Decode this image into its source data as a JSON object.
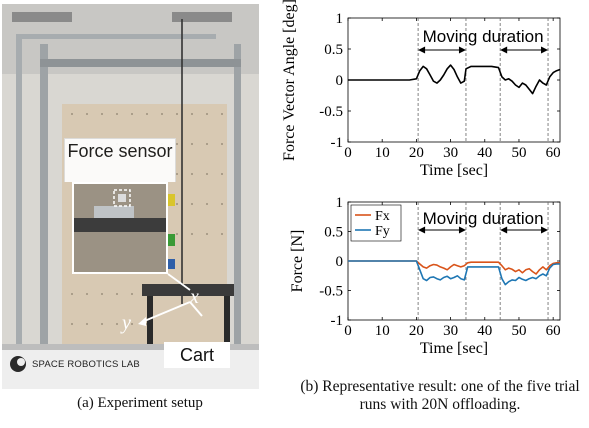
{
  "figure": {
    "photo": {
      "callout_label": "Force sensor",
      "axis_x": "x",
      "axis_y": "y",
      "cart_label": "Cart",
      "lab_logo_text": "SPACE ROBOTICS LAB"
    },
    "caption_a": "(a) Experiment setup",
    "caption_b": "(b) Representative result: one of the five trial runs with 20N offloading."
  },
  "chart_data": [
    {
      "type": "line",
      "title": "",
      "xlabel": "Time [sec]",
      "ylabel": "Force Vector Angle [deg]",
      "xlim": [
        0,
        62
      ],
      "ylim": [
        -1,
        1
      ],
      "xticks": [
        0,
        10,
        20,
        30,
        40,
        50,
        60
      ],
      "yticks": [
        -1,
        -0.5,
        0,
        0.5,
        1
      ],
      "xtick_labels": [
        "0",
        "10",
        "20",
        "30",
        "40",
        "50",
        "60"
      ],
      "ytick_labels": [
        "-1",
        "-0.5",
        "0",
        "0.5",
        "1"
      ],
      "annotation": "Moving duration",
      "moving_duration_intervals": [
        [
          20.5,
          34.5
        ],
        [
          44.5,
          58.5
        ]
      ],
      "series": [
        {
          "color": "#000000",
          "x": [
            0,
            2,
            4,
            6,
            8,
            10,
            12,
            14,
            16,
            18,
            20,
            21,
            22,
            23,
            24,
            25,
            26,
            27,
            28,
            29,
            30,
            31,
            32,
            33,
            34,
            34.5,
            36,
            38,
            40,
            42,
            44,
            45,
            46,
            47,
            48,
            49,
            50,
            51,
            52,
            53,
            54,
            55,
            56,
            57,
            58,
            59,
            60,
            61,
            62
          ],
          "y": [
            0.0,
            0.0,
            0.0,
            0.0,
            0.0,
            0.0,
            0.0,
            0.0,
            0.0,
            0.0,
            0.02,
            0.15,
            0.22,
            0.18,
            0.08,
            -0.02,
            -0.05,
            0.0,
            0.08,
            0.18,
            0.24,
            0.17,
            0.05,
            -0.05,
            -0.02,
            0.18,
            0.22,
            0.22,
            0.22,
            0.22,
            0.2,
            0.05,
            0.0,
            0.02,
            -0.02,
            -0.08,
            -0.12,
            -0.05,
            -0.08,
            -0.15,
            -0.22,
            -0.1,
            0.0,
            -0.05,
            -0.08,
            0.05,
            0.12,
            0.15,
            0.17
          ]
        }
      ]
    },
    {
      "type": "line",
      "title": "",
      "xlabel": "Time [sec]",
      "ylabel": "Force [N]",
      "xlim": [
        0,
        62
      ],
      "ylim": [
        -1,
        1
      ],
      "xticks": [
        0,
        10,
        20,
        30,
        40,
        50,
        60
      ],
      "yticks": [
        -1,
        -0.5,
        0,
        0.5,
        1
      ],
      "xtick_labels": [
        "0",
        "10",
        "20",
        "30",
        "40",
        "50",
        "60"
      ],
      "ytick_labels": [
        "-1",
        "-0.5",
        "0",
        "0.5",
        "1"
      ],
      "annotation": "Moving duration",
      "legend_position": "top-left",
      "moving_duration_intervals": [
        [
          20.5,
          34.5
        ],
        [
          44.5,
          58.5
        ]
      ],
      "series": [
        {
          "name": "Fx",
          "color": "#d9541a",
          "x": [
            0,
            2,
            4,
            6,
            8,
            10,
            12,
            14,
            16,
            18,
            20,
            21,
            22,
            23,
            24,
            25,
            26,
            27,
            28,
            29,
            30,
            31,
            32,
            33,
            34,
            35,
            36,
            38,
            40,
            42,
            44,
            45,
            46,
            47,
            48,
            49,
            50,
            51,
            52,
            53,
            54,
            55,
            56,
            57,
            58,
            59,
            60,
            61,
            62
          ],
          "y": [
            0.0,
            0.0,
            0.0,
            0.0,
            0.0,
            0.0,
            0.0,
            0.0,
            0.0,
            0.0,
            0.0,
            -0.05,
            -0.1,
            -0.12,
            -0.08,
            -0.06,
            -0.07,
            -0.1,
            -0.12,
            -0.15,
            -0.1,
            -0.06,
            -0.08,
            -0.1,
            -0.08,
            -0.03,
            -0.02,
            -0.02,
            -0.02,
            -0.02,
            -0.02,
            -0.08,
            -0.15,
            -0.12,
            -0.14,
            -0.18,
            -0.15,
            -0.2,
            -0.15,
            -0.13,
            -0.18,
            -0.22,
            -0.15,
            -0.1,
            -0.15,
            -0.08,
            -0.04,
            -0.03,
            -0.03
          ]
        },
        {
          "name": "Fy",
          "color": "#1f77b4",
          "x": [
            0,
            2,
            4,
            6,
            8,
            10,
            12,
            14,
            16,
            18,
            20,
            21,
            22,
            23,
            24,
            25,
            26,
            27,
            28,
            29,
            30,
            31,
            32,
            33,
            34,
            35,
            36,
            38,
            40,
            42,
            44,
            45,
            46,
            47,
            48,
            49,
            50,
            51,
            52,
            53,
            54,
            55,
            56,
            57,
            58,
            59,
            60,
            61,
            62
          ],
          "y": [
            0.0,
            0.0,
            0.0,
            0.0,
            0.0,
            0.0,
            0.0,
            0.0,
            0.0,
            0.0,
            0.0,
            -0.15,
            -0.3,
            -0.33,
            -0.28,
            -0.27,
            -0.3,
            -0.32,
            -0.28,
            -0.26,
            -0.3,
            -0.28,
            -0.25,
            -0.3,
            -0.32,
            -0.1,
            -0.1,
            -0.1,
            -0.1,
            -0.1,
            -0.1,
            -0.3,
            -0.4,
            -0.35,
            -0.32,
            -0.33,
            -0.28,
            -0.31,
            -0.33,
            -0.3,
            -0.28,
            -0.3,
            -0.25,
            -0.22,
            -0.25,
            -0.12,
            -0.06,
            -0.05,
            -0.05
          ]
        }
      ]
    }
  ]
}
